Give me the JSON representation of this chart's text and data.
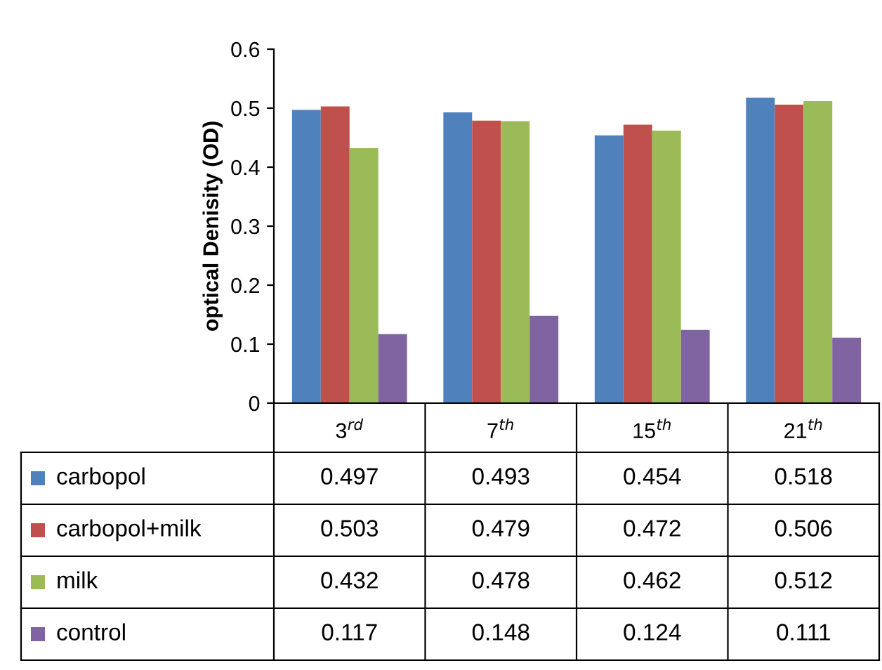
{
  "chart_data": {
    "type": "bar",
    "ylabel": "optical Denisity (OD)",
    "categories": [
      "3$^{rd}$",
      "7$^{th}$",
      "15$^{th}$",
      "21$^{th}$"
    ],
    "series": [
      {
        "name": "carbopol",
        "color": "#4f81bd",
        "values": [
          0.497,
          0.493,
          0.454,
          0.518
        ]
      },
      {
        "name": "carbopol+milk",
        "color": "#c0504d",
        "values": [
          0.503,
          0.479,
          0.472,
          0.506
        ]
      },
      {
        "name": "milk",
        "color": "#9bbb59",
        "values": [
          0.432,
          0.478,
          0.462,
          0.512
        ]
      },
      {
        "name": "control",
        "color": "#8064a2",
        "values": [
          0.117,
          0.148,
          0.124,
          0.111
        ]
      }
    ],
    "ylim": [
      0,
      0.6
    ],
    "yticks": [
      0,
      0.1,
      0.2,
      0.3,
      0.4,
      0.5,
      0.6
    ],
    "grid": false,
    "legend": "bottom",
    "data_labels": true
  }
}
